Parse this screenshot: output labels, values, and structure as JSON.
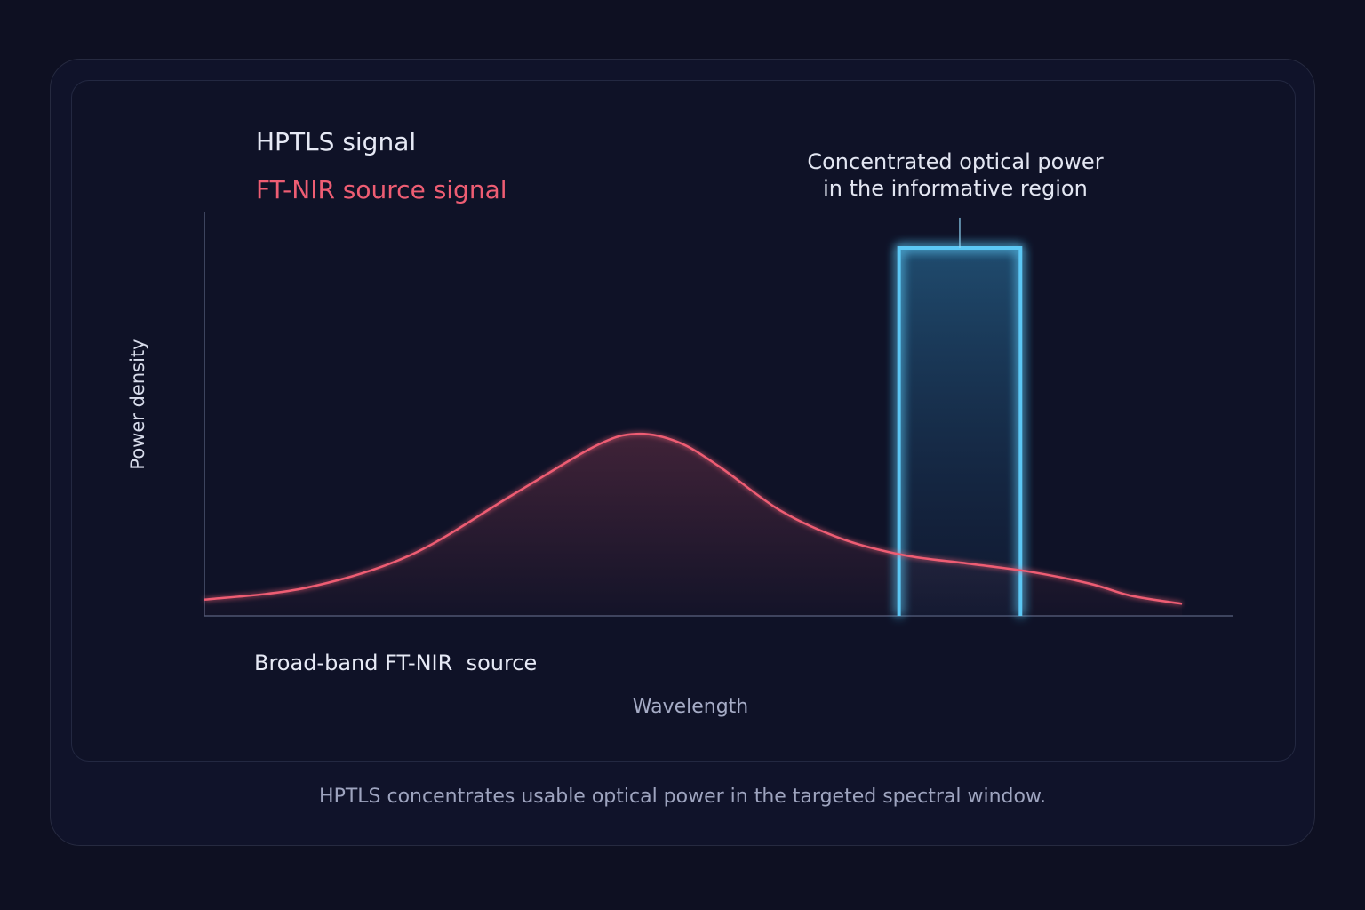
{
  "chart_data": {
    "type": "line",
    "ylabel": "Power density",
    "xlabel": "Wavelength",
    "xlim": [
      0,
      100
    ],
    "ylim": [
      0,
      100
    ],
    "legend": [
      {
        "label": "HPTLS signal",
        "color": "#5cc8f5"
      },
      {
        "label": "FT-NIR source signal",
        "color": "#ee5d73"
      }
    ],
    "bottom_legend": {
      "label": "Broad-band FT-NIR  source",
      "color": "#5cc8f5"
    },
    "series": [
      {
        "name": "FT-NIR source signal",
        "color": "#ee5d73",
        "x": [
          0,
          10,
          20,
          30,
          38,
          42,
          46,
          50,
          56,
          62,
          68,
          74,
          80,
          86,
          90,
          95
        ],
        "y": [
          4,
          7,
          15,
          30,
          42,
          45,
          43,
          37,
          26,
          19,
          15,
          13,
          11,
          8,
          5,
          3
        ]
      },
      {
        "name": "HPTLS signal",
        "color": "#5cc8f5",
        "x": [
          67.5,
          67.5,
          79.3,
          79.3
        ],
        "y": [
          0,
          91,
          91,
          0
        ]
      }
    ],
    "annotation": {
      "lines": [
        "Concentrated optical power",
        "in the informative region"
      ],
      "x": 73.4,
      "y": 91
    },
    "legend_position": "top-left",
    "grid": false
  },
  "caption": "HPTLS concentrates usable optical power in the targeted spectral window."
}
